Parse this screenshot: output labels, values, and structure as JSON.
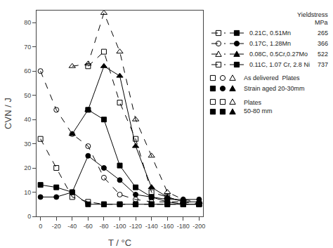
{
  "chart_data": {
    "type": "line",
    "xlabel": "T / °C",
    "ylabel": "CVN / J",
    "xlim": [
      5,
      -205
    ],
    "ylim": [
      0,
      85
    ],
    "xticks": [
      0,
      -20,
      -40,
      -60,
      -80,
      -100,
      -120,
      -140,
      -160,
      -180,
      -200
    ],
    "yticks": [
      0,
      10,
      20,
      30,
      40,
      50,
      60,
      70,
      80
    ],
    "grid": false,
    "series": [
      {
        "x": [
          0,
          -20,
          -40,
          -60,
          -80,
          -100,
          -120,
          -140,
          -160,
          -180,
          -200
        ],
        "values": [
          32,
          20,
          8,
          6,
          5,
          5,
          5,
          5,
          5,
          5,
          5
        ],
        "color": "black",
        "marker": "square-open",
        "line_style": "dashed"
      },
      {
        "x": [
          0,
          -20,
          -40,
          -60,
          -80,
          -100,
          -120,
          -140,
          -160,
          -180,
          -200
        ],
        "values": [
          13,
          12,
          10,
          5,
          5,
          5,
          5,
          5,
          5,
          5,
          5
        ],
        "color": "black",
        "marker": "square",
        "line_style": "solid"
      },
      {
        "x": [
          0,
          -20,
          -40,
          -60,
          -80,
          -100,
          -120,
          -140,
          -160,
          -180,
          -200
        ],
        "values": [
          60,
          44,
          34,
          29,
          16,
          9,
          7,
          6,
          6,
          6,
          6
        ],
        "color": "black",
        "marker": "circle-open",
        "line_style": "dashed"
      },
      {
        "x": [
          0,
          -20,
          -40,
          -60,
          -80,
          -100,
          -120,
          -140,
          -160,
          -180,
          -200
        ],
        "values": [
          8,
          8,
          10,
          25,
          20,
          15,
          9,
          8,
          7,
          7,
          7
        ],
        "color": "black",
        "marker": "circle",
        "line_style": "solid"
      },
      {
        "x": [
          -40,
          -60,
          -80,
          -100,
          -120,
          -140,
          -160,
          -180,
          -200
        ],
        "values": [
          62,
          63,
          84,
          68,
          40,
          25,
          10,
          7,
          6
        ],
        "color": "black",
        "marker": "triangle-up-open",
        "line_style": "dashed"
      },
      {
        "x": [
          -40,
          -60,
          -80,
          -100,
          -120,
          -140,
          -160,
          -180,
          -200
        ],
        "values": [
          34,
          44,
          62,
          58,
          29,
          12,
          8,
          6,
          6
        ],
        "color": "black",
        "marker": "triangle-up",
        "line_style": "solid"
      },
      {
        "x": [
          -60,
          -80,
          -100,
          -120,
          -140,
          -160,
          -180,
          -200
        ],
        "values": [
          62,
          68,
          47,
          32,
          10,
          8,
          6,
          5
        ],
        "color": "black",
        "marker": "square-open",
        "line_style": "dashed"
      },
      {
        "x": [
          -60,
          -80,
          -100,
          -120,
          -140,
          -160,
          -180,
          -200
        ],
        "values": [
          44,
          40,
          21,
          12,
          8,
          6,
          5,
          5
        ],
        "color": "black",
        "marker": "square",
        "line_style": "solid"
      }
    ],
    "annotations": [
      {
        "text": "Yieldstress"
      },
      {
        "text": "MPa"
      },
      {
        "text": "0.21C, 0.51Mn",
        "yield_stress": "265",
        "marker": [
          "square-open",
          "square"
        ],
        "line_style": [
          "dashed",
          "solid"
        ]
      },
      {
        "text": "0.17C, 1.28Mn",
        "yield_stress": "366",
        "marker": [
          "circle-open",
          "circle"
        ],
        "line_style": [
          "dashed",
          "solid"
        ]
      },
      {
        "text": "0.08C, 0.5Cr,0.27Mo",
        "yield_stress": "522",
        "marker": [
          "triangle-up-open",
          "triangle-up"
        ],
        "line_style": [
          "dashed",
          "solid"
        ]
      },
      {
        "text": "0.11C, 1.07 Cr, 2.8 Ni",
        "yield_stress": "737",
        "marker": [
          "square-open",
          "square"
        ],
        "line_style": [
          "dashed",
          "solid"
        ]
      },
      {
        "text": "As delivered  Plates",
        "marker": [
          "square-open",
          "circle-open",
          "triangle-up-open"
        ]
      },
      {
        "text": "Strain aged 20-30mm",
        "marker": [
          "square",
          "circle",
          "triangle-up"
        ]
      },
      {
        "text": "Plates\n50-80 mm",
        "marker": [
          [
            "square-open",
            "square-open",
            "triangle-up-open"
          ],
          [
            "square",
            "square",
            "triangle-up"
          ]
        ]
      }
    ]
  }
}
